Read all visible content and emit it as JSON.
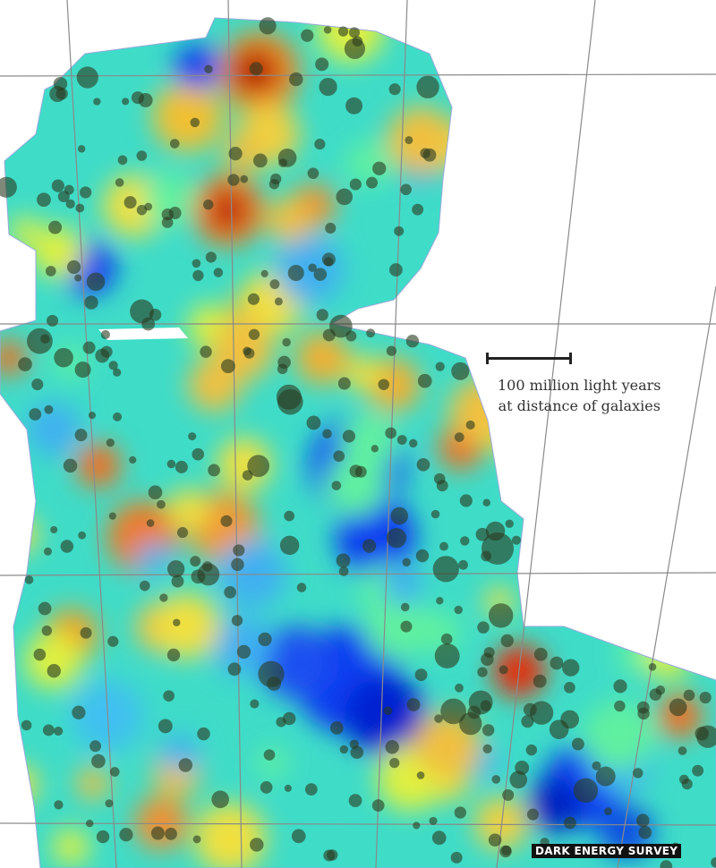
{
  "scale": {
    "line1": "100 million light years",
    "line2": "at distance of galaxies"
  },
  "credit": "DARK ENERGY SURVEY",
  "colors": {
    "background": "#3fdcc8",
    "high_density": "#c81e00",
    "mid_density": "#f0a020",
    "low_density": "#0a3cf0",
    "galaxy_cluster": "#2a3a20",
    "grid": "#8a8a8a"
  }
}
